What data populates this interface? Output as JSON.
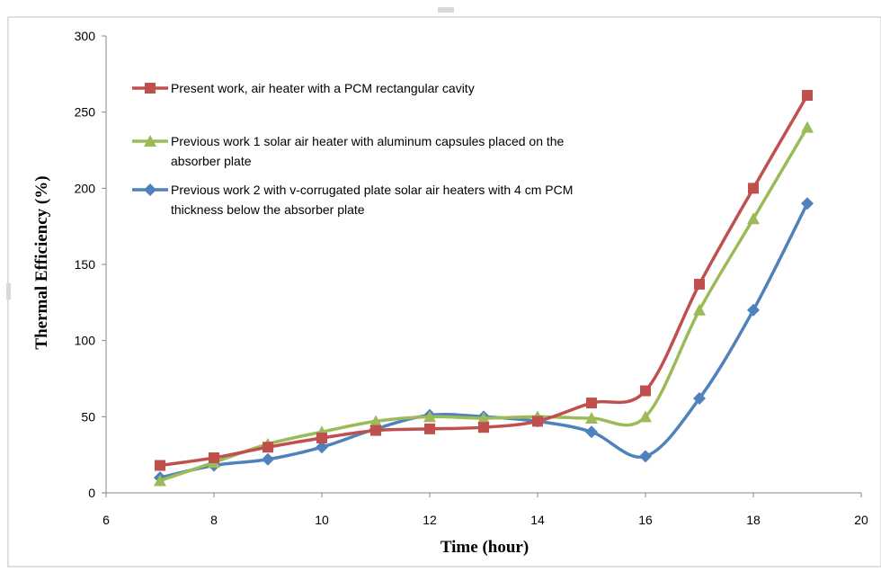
{
  "chart_data": {
    "type": "line",
    "xlabel": "Time (hour)",
    "ylabel": "Thermal  Efficiency (%)",
    "xlim": [
      6,
      20
    ],
    "ylim": [
      0,
      300
    ],
    "xticks": [
      6,
      8,
      10,
      12,
      14,
      16,
      18,
      20
    ],
    "yticks": [
      0,
      50,
      100,
      150,
      200,
      250,
      300
    ],
    "grid": false,
    "legend_position": "top-left",
    "series": [
      {
        "name_lines": [
          "Present work, air heater with a PCM rectangular cavity"
        ],
        "color": "#C0504D",
        "marker": "square",
        "x": [
          7,
          8,
          9,
          10,
          11,
          12,
          13,
          14,
          15,
          16,
          17,
          18,
          19
        ],
        "y": [
          18,
          23,
          30,
          36,
          41,
          42,
          43,
          47,
          59,
          67,
          137,
          200,
          261
        ]
      },
      {
        "name_lines": [
          "Previous work 1 solar air heater with aluminum capsules placed on the",
          "absorber plate"
        ],
        "color": "#9BBB59",
        "marker": "triangle",
        "x": [
          7,
          8,
          9,
          10,
          11,
          12,
          13,
          14,
          15,
          16,
          17,
          18,
          19
        ],
        "y": [
          8,
          20,
          32,
          40,
          47,
          50,
          49,
          50,
          49,
          50,
          120,
          180,
          240
        ]
      },
      {
        "name_lines": [
          "Previous work 2 with v-corrugated plate solar air heaters with 4 cm PCM",
          "thickness below the absorber plate"
        ],
        "color": "#4F81BD",
        "marker": "diamond",
        "x": [
          7,
          8,
          9,
          10,
          11,
          12,
          13,
          14,
          15,
          16,
          17,
          18,
          19
        ],
        "y": [
          10,
          18,
          22,
          30,
          42,
          51,
          50,
          47,
          40,
          24,
          62,
          120,
          190
        ]
      }
    ]
  }
}
